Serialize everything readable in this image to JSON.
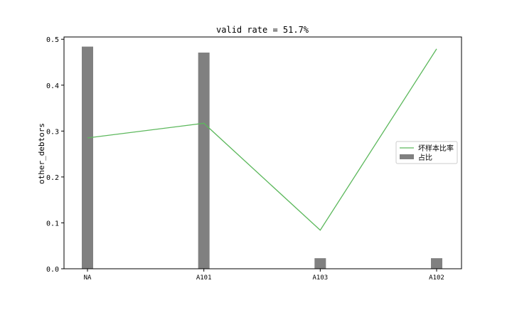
{
  "chart_data": {
    "type": "bar+line",
    "title": "valid rate = 51.7%",
    "xlabel": "",
    "ylabel": "other_debtors",
    "categories": [
      "NA",
      "A101",
      "A103",
      "A102"
    ],
    "ylim": [
      0,
      0.505
    ],
    "yticks": [
      0.0,
      0.1,
      0.2,
      0.3,
      0.4,
      0.5
    ],
    "ytick_labels": [
      "0.0",
      "0.1",
      "0.2",
      "0.3",
      "0.4",
      "0.5"
    ],
    "grid": false,
    "legend_position": "center-right",
    "series": [
      {
        "name": "坏样本比率",
        "kind": "line",
        "color": "#5cb85c",
        "values": [
          0.285,
          0.317,
          0.084,
          0.479
        ]
      },
      {
        "name": "占比",
        "kind": "bar",
        "color": "#808080",
        "values": [
          0.484,
          0.471,
          0.023,
          0.023
        ]
      }
    ]
  }
}
